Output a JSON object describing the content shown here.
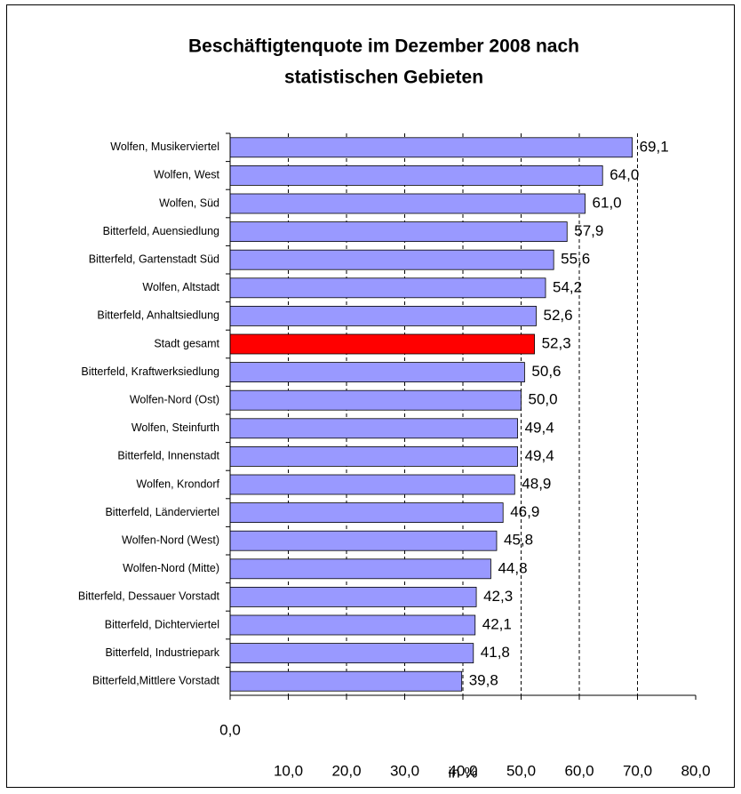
{
  "chart_data": {
    "type": "barh",
    "title": [
      "Beschäftigtenquote im Dezember 2008 nach",
      "statistischen Gebieten"
    ],
    "xlabel": "in %",
    "categories": [
      "Wolfen, Musikerviertel",
      "Wolfen, West",
      "Wolfen, Süd",
      "Bitterfeld, Auensiedlung",
      "Bitterfeld, Gartenstadt Süd",
      "Wolfen, Altstadt",
      "Bitterfeld, Anhaltsiedlung",
      "Stadt gesamt",
      "Bitterfeld, Kraftwerksiedlung",
      "Wolfen-Nord (Ost)",
      "Wolfen, Steinfurth",
      "Bitterfeld, Innenstadt",
      "Wolfen, Krondorf",
      "Bitterfeld, Länderviertel",
      "Wolfen-Nord (West)",
      "Wolfen-Nord (Mitte)",
      "Bitterfeld, Dessauer Vorstadt",
      "Bitterfeld, Dichterviertel",
      "Bitterfeld, Industriepark",
      "Bitterfeld,Mittlere Vorstadt"
    ],
    "values": [
      69.1,
      64.0,
      61.0,
      57.9,
      55.6,
      54.2,
      52.6,
      52.3,
      50.6,
      50.0,
      49.4,
      49.4,
      48.9,
      46.9,
      45.8,
      44.8,
      42.3,
      42.1,
      41.8,
      39.8
    ],
    "value_labels": [
      "69,1",
      "64,0",
      "61,0",
      "57,9",
      "55,6",
      "54,2",
      "52,6",
      "52,3",
      "50,6",
      "50,0",
      "49,4",
      "49,4",
      "48,9",
      "46,9",
      "45,8",
      "44,8",
      "42,3",
      "42,1",
      "41,8",
      "39,8"
    ],
    "colors": [
      "#9999ff",
      "#9999ff",
      "#9999ff",
      "#9999ff",
      "#9999ff",
      "#9999ff",
      "#9999ff",
      "#ff0000",
      "#9999ff",
      "#9999ff",
      "#9999ff",
      "#9999ff",
      "#9999ff",
      "#9999ff",
      "#9999ff",
      "#9999ff",
      "#9999ff",
      "#9999ff",
      "#9999ff",
      "#9999ff"
    ],
    "xlim": [
      0,
      80
    ],
    "xticks": [
      {
        "value": 0,
        "label": "0,0"
      },
      {
        "value": 10,
        "label": "10,0"
      },
      {
        "value": 20,
        "label": "20,0"
      },
      {
        "value": 30,
        "label": "30,0"
      },
      {
        "value": 40,
        "label": "40,0"
      },
      {
        "value": 50,
        "label": "50,0"
      },
      {
        "value": 60,
        "label": "60,0"
      },
      {
        "value": 70,
        "label": "70,0"
      },
      {
        "value": 80,
        "label": "80,0"
      }
    ],
    "grid": true
  }
}
